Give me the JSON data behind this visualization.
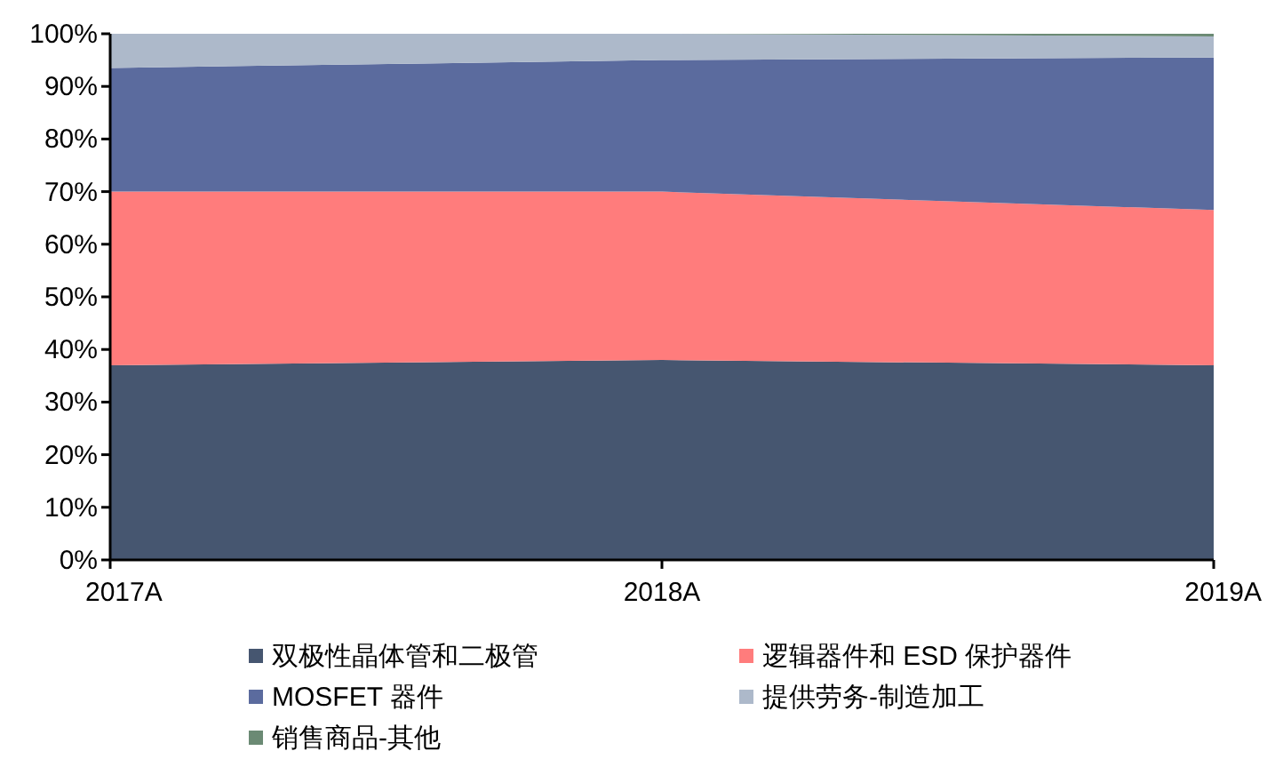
{
  "chart_data": {
    "type": "area",
    "stacked": true,
    "categories": [
      "2017A",
      "2018A",
      "2019A"
    ],
    "series": [
      {
        "name": "双极性晶体管和二极管",
        "color": "#465670",
        "values": [
          37,
          38,
          37
        ]
      },
      {
        "name": "逻辑器件和 ESD 保护器件",
        "color": "#ff7c7c",
        "values": [
          33,
          32,
          29.5
        ]
      },
      {
        "name": "MOSFET 器件",
        "color": "#5b6b9e",
        "values": [
          23.5,
          25,
          29
        ]
      },
      {
        "name": "提供劳务-制造加工",
        "color": "#adb9ca",
        "values": [
          6.5,
          5,
          4
        ]
      },
      {
        "name": "销售商品-其他",
        "color": "#6b8a74",
        "values": [
          0,
          0,
          0.5
        ]
      }
    ],
    "ylim": [
      0,
      100
    ],
    "yticks": [
      {
        "value": 0,
        "label": "0%"
      },
      {
        "value": 10,
        "label": "10%"
      },
      {
        "value": 20,
        "label": "20%"
      },
      {
        "value": 30,
        "label": "30%"
      },
      {
        "value": 40,
        "label": "40%"
      },
      {
        "value": 50,
        "label": "50%"
      },
      {
        "value": 60,
        "label": "60%"
      },
      {
        "value": 70,
        "label": "70%"
      },
      {
        "value": 80,
        "label": "80%"
      },
      {
        "value": 90,
        "label": "90%"
      },
      {
        "value": 100,
        "label": "100%"
      }
    ],
    "grid": false,
    "legend": "bottom"
  }
}
